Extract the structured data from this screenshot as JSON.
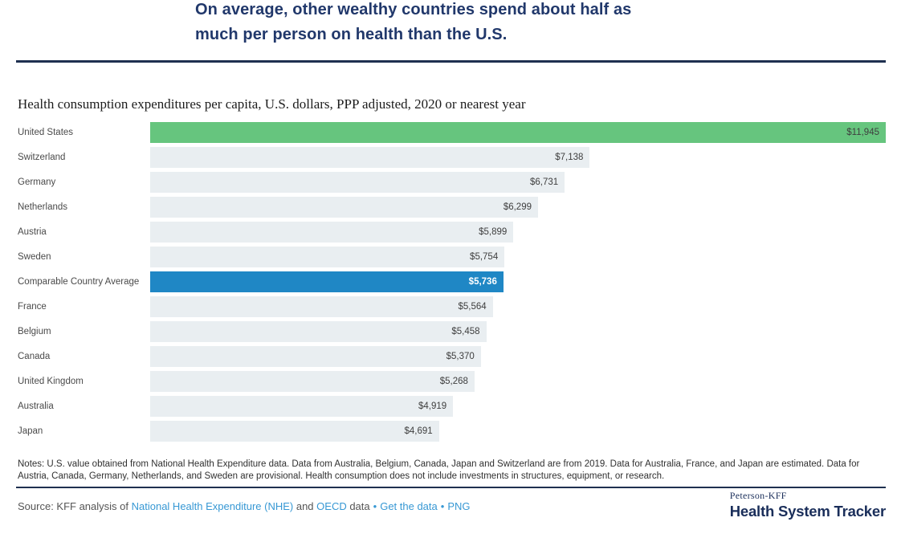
{
  "header": {
    "title": "On average, other wealthy countries spend about half as much per person on health than the U.S."
  },
  "chart_data": {
    "type": "bar",
    "orientation": "horizontal",
    "title": "On average, other wealthy countries spend about half as much per person on health than the U.S.",
    "subtitle": "Health consumption expenditures per capita, U.S. dollars, PPP adjusted, 2020 or nearest year",
    "categories": [
      "United States",
      "Switzerland",
      "Germany",
      "Netherlands",
      "Austria",
      "Sweden",
      "Comparable Country Average",
      "France",
      "Belgium",
      "Canada",
      "United Kingdom",
      "Australia",
      "Japan"
    ],
    "values": [
      11945,
      7138,
      6731,
      6299,
      5899,
      5754,
      5736,
      5564,
      5458,
      5370,
      5268,
      4919,
      4691
    ],
    "value_labels": [
      "$11,945",
      "$7,138",
      "$6,731",
      "$6,299",
      "$5,899",
      "$5,754",
      "$5,736",
      "$5,564",
      "$5,458",
      "$5,370",
      "$5,268",
      "$4,919",
      "$4,691"
    ],
    "bar_colors": [
      "#66c57e",
      "#e9eef1",
      "#e9eef1",
      "#e9eef1",
      "#e9eef1",
      "#e9eef1",
      "#1f87c5",
      "#e9eef1",
      "#e9eef1",
      "#e9eef1",
      "#e9eef1",
      "#e9eef1",
      "#e9eef1"
    ],
    "value_text_colors": [
      "#3e3e3e",
      "#3e3e3e",
      "#3e3e3e",
      "#3e3e3e",
      "#3e3e3e",
      "#3e3e3e",
      "#ffffff",
      "#3e3e3e",
      "#3e3e3e",
      "#3e3e3e",
      "#3e3e3e",
      "#3e3e3e",
      "#3e3e3e"
    ],
    "value_bold": [
      false,
      false,
      false,
      false,
      false,
      false,
      true,
      false,
      false,
      false,
      false,
      false,
      false
    ],
    "xlim": [
      0,
      11945
    ],
    "grid": false,
    "legend": "none"
  },
  "notes": {
    "text": "Notes: U.S. value obtained from National Health Expenditure data. Data from Australia, Belgium, Canada, Japan and Switzerland are from 2019. Data for Australia, France, and Japan are estimated. Data for Austria, Canada, Germany, Netherlands, and Sweden are provisional. Health consumption does not include investments in structures, equipment, or research."
  },
  "source": {
    "prefix": "Source: KFF analysis of ",
    "nhe_link": "National Health Expenditure (NHE)",
    "and_text": " and ",
    "oecd_link": "OECD",
    "data_text": " data",
    "separator": "•",
    "get_data_link": "Get the data",
    "png_link": "PNG"
  },
  "branding": {
    "org": "Peterson-KFF",
    "name": "Health System Tracker"
  },
  "colors": {
    "title_navy": "#21386b",
    "divider_navy": "#1f3050",
    "us_green": "#66c57e",
    "average_blue": "#1f87c5",
    "bar_gray": "#e9eef1",
    "link_blue": "#3798d4"
  }
}
